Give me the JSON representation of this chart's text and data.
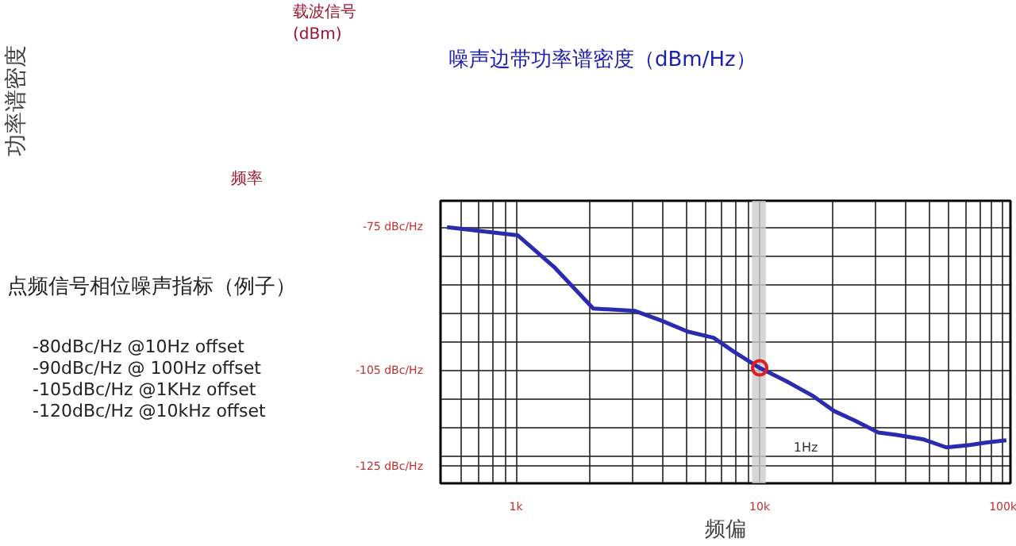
{
  "chart_data": [
    {
      "type": "other",
      "annotations": [
        "功率谱密度",
        "载波信号",
        "(dBm)",
        "噪声边带功率谱密度（dBm/Hz）",
        "频率",
        "点频信号相位噪声指标（例子）",
        "-80dBc/Hz  @10Hz offset",
        "-90dBc/Hz  @ 100Hz offset",
        "-105dBc/Hz  @1KHz offset",
        "-120dBc/Hz  @10kHz offset"
      ]
    },
    {
      "type": "line",
      "xlabel": "频偏",
      "log": "x",
      "grid": true,
      "xlim": [
        490,
        107000
      ],
      "ylim": [
        -128.5,
        -69.5
      ],
      "xticks": [
        {
          "value": 600,
          "label": null
        },
        {
          "value": 700,
          "label": null
        },
        {
          "value": 800,
          "label": null
        },
        {
          "value": 900,
          "label": null
        },
        {
          "value": 1000,
          "label": "1k"
        },
        {
          "value": 2000,
          "label": null
        },
        {
          "value": 3000,
          "label": null
        },
        {
          "value": 4000,
          "label": null
        },
        {
          "value": 5000,
          "label": null
        },
        {
          "value": 6000,
          "label": null
        },
        {
          "value": 7000,
          "label": null
        },
        {
          "value": 8000,
          "label": null
        },
        {
          "value": 9000,
          "label": null
        },
        {
          "value": 10000,
          "label": "10k"
        },
        {
          "value": 20000,
          "label": null
        },
        {
          "value": 30000,
          "label": null
        },
        {
          "value": 40000,
          "label": null
        },
        {
          "value": 50000,
          "label": null
        },
        {
          "value": 60000,
          "label": null
        },
        {
          "value": 70000,
          "label": null
        },
        {
          "value": 80000,
          "label": null
        },
        {
          "value": 90000,
          "label": null
        },
        {
          "value": 100000,
          "label": "100k"
        }
      ],
      "yticks": [
        {
          "value": -75,
          "label": "-75 dBc/Hz"
        },
        {
          "value": -81,
          "label": null
        },
        {
          "value": -87,
          "label": null
        },
        {
          "value": -93,
          "label": null
        },
        {
          "value": -99,
          "label": null
        },
        {
          "value": -105,
          "label": "-105 dBc/Hz"
        },
        {
          "value": -111,
          "label": null
        },
        {
          "value": -117,
          "label": null
        },
        {
          "value": -123,
          "label": null
        },
        {
          "value": -125,
          "label": "-125 dBc/Hz"
        }
      ],
      "bands": [
        {
          "axis": "x",
          "from": 9300,
          "to": 10600,
          "label": "1Hz",
          "color": "#cccccc"
        }
      ],
      "series": [
        {
          "type": "line",
          "color": "#2b2bb0",
          "marker": "none",
          "x": [
            521,
            1015,
            1432,
            2075,
            3080,
            3945,
            5060,
            6470,
            7880,
            10000,
            12900,
            16600,
            20200,
            24600,
            30700,
            36500,
            46700,
            58400,
            72900,
            84600,
            103000
          ],
          "values": [
            -75.0,
            -76.7,
            -83.3,
            -92.0,
            -92.5,
            -94.5,
            -96.8,
            -98.1,
            -101.1,
            -104.4,
            -107.2,
            -110.3,
            -113.4,
            -115.4,
            -117.9,
            -118.4,
            -119.3,
            -121.0,
            -120.5,
            -120.0,
            -119.5
          ]
        },
        {
          "type": "scatter",
          "color": "#e02020",
          "marker": "circle",
          "x": [
            10000
          ],
          "values": [
            -104.4
          ]
        }
      ]
    }
  ]
}
